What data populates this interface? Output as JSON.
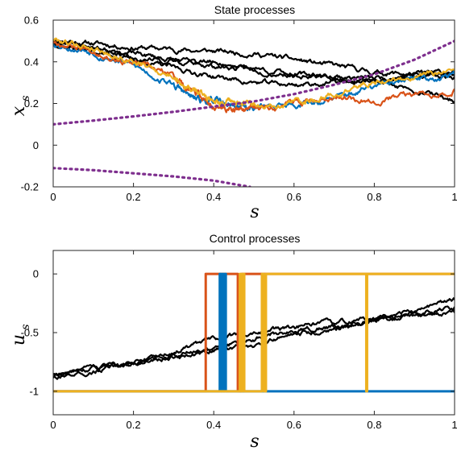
{
  "chart_data": [
    {
      "type": "line",
      "title": "State processes",
      "xlabel": "s",
      "ylabel": "x",
      "ylabel_sub": "s",
      "xlim": [
        0,
        1
      ],
      "ylim": [
        -0.2,
        0.6
      ],
      "xticks": [
        0,
        0.2,
        0.4,
        0.6,
        0.8,
        1
      ],
      "xtick_labels": [
        "0",
        "0.2",
        "0.4",
        "0.6",
        "0.8",
        "1"
      ],
      "yticks": [
        -0.2,
        0,
        0.2,
        0.4,
        0.6
      ],
      "ytick_labels": [
        "-0.2",
        "0",
        "0.2",
        "0.4",
        "0.6"
      ],
      "grid": false,
      "legend": "none",
      "series": [
        {
          "color": "#000000",
          "width": 2.2,
          "noise": 0.007,
          "seed": 11,
          "x": [
            0,
            0.1,
            0.2,
            0.3,
            0.4,
            0.5,
            0.6,
            0.7,
            0.8,
            0.9,
            1.0
          ],
          "y": [
            0.5,
            0.49,
            0.47,
            0.46,
            0.45,
            0.44,
            0.41,
            0.38,
            0.35,
            0.34,
            0.35
          ]
        },
        {
          "color": "#000000",
          "width": 2.2,
          "noise": 0.007,
          "seed": 23,
          "x": [
            0,
            0.1,
            0.2,
            0.3,
            0.4,
            0.5,
            0.6,
            0.7,
            0.8,
            0.9,
            1.0
          ],
          "y": [
            0.5,
            0.47,
            0.44,
            0.41,
            0.38,
            0.36,
            0.34,
            0.33,
            0.32,
            0.34,
            0.33
          ]
        },
        {
          "color": "#000000",
          "width": 2.2,
          "noise": 0.007,
          "seed": 37,
          "x": [
            0,
            0.1,
            0.2,
            0.3,
            0.4,
            0.5,
            0.6,
            0.7,
            0.8,
            0.9,
            1.0
          ],
          "y": [
            0.49,
            0.45,
            0.41,
            0.37,
            0.33,
            0.3,
            0.29,
            0.3,
            0.31,
            0.32,
            0.34
          ]
        },
        {
          "color": "#000000",
          "width": 2.2,
          "noise": 0.007,
          "seed": 41,
          "x": [
            0,
            0.1,
            0.2,
            0.3,
            0.4,
            0.5,
            0.6,
            0.7,
            0.8,
            0.9,
            1.0
          ],
          "y": [
            0.5,
            0.46,
            0.42,
            0.4,
            0.4,
            0.37,
            0.34,
            0.32,
            0.3,
            0.27,
            0.21
          ]
        },
        {
          "color": "#0072BD",
          "width": 2.2,
          "noise": 0.009,
          "seed": 53,
          "x": [
            0,
            0.1,
            0.2,
            0.3,
            0.35,
            0.4,
            0.45,
            0.5,
            0.6,
            0.7,
            0.8,
            0.9,
            1.0
          ],
          "y": [
            0.49,
            0.45,
            0.38,
            0.29,
            0.22,
            0.21,
            0.19,
            0.18,
            0.2,
            0.22,
            0.28,
            0.31,
            0.34
          ]
        },
        {
          "color": "#D95319",
          "width": 2.2,
          "noise": 0.009,
          "seed": 67,
          "x": [
            0,
            0.1,
            0.2,
            0.3,
            0.35,
            0.4,
            0.45,
            0.5,
            0.6,
            0.7,
            0.8,
            0.9,
            1.0
          ],
          "y": [
            0.5,
            0.46,
            0.39,
            0.33,
            0.25,
            0.19,
            0.16,
            0.18,
            0.2,
            0.24,
            0.22,
            0.24,
            0.27
          ]
        },
        {
          "color": "#EDB120",
          "width": 2.2,
          "noise": 0.009,
          "seed": 79,
          "x": [
            0,
            0.1,
            0.2,
            0.3,
            0.35,
            0.4,
            0.45,
            0.5,
            0.6,
            0.7,
            0.8,
            0.9,
            1.0
          ],
          "y": [
            0.51,
            0.47,
            0.4,
            0.33,
            0.26,
            0.22,
            0.2,
            0.19,
            0.21,
            0.24,
            0.31,
            0.32,
            0.36
          ]
        },
        {
          "color": "#7E2F8E",
          "width": 3.2,
          "dash": "2,5",
          "x": [
            0,
            0.1,
            0.2,
            0.3,
            0.4,
            0.5,
            0.6,
            0.7,
            0.8,
            0.9,
            1.0
          ],
          "y": [
            0.1,
            0.118,
            0.138,
            0.16,
            0.185,
            0.21,
            0.245,
            0.29,
            0.34,
            0.41,
            0.5
          ]
        },
        {
          "color": "#7E2F8E",
          "width": 3.2,
          "dash": "2,5",
          "x": [
            0,
            0.1,
            0.2,
            0.3,
            0.4,
            0.49
          ],
          "y": [
            -0.11,
            -0.12,
            -0.135,
            -0.15,
            -0.17,
            -0.2
          ]
        }
      ]
    },
    {
      "type": "line",
      "title": "Control processes",
      "xlabel": "s",
      "ylabel": "u",
      "ylabel_sub": "s",
      "xlim": [
        0,
        1
      ],
      "ylim": [
        -1.2,
        0.2
      ],
      "xticks": [
        0,
        0.2,
        0.4,
        0.6,
        0.8,
        1
      ],
      "xtick_labels": [
        "0",
        "0.2",
        "0.4",
        "0.6",
        "0.8",
        "1"
      ],
      "yticks": [
        -1,
        -0.5,
        0
      ],
      "ytick_labels": [
        "-1",
        "-0.5",
        "0"
      ],
      "grid": false,
      "legend": "none",
      "series": [
        {
          "color": "#000000",
          "width": 2.2,
          "noise": 0.012,
          "seed": 91,
          "x": [
            0,
            0.1,
            0.2,
            0.3,
            0.4,
            0.5,
            0.6,
            0.7,
            0.8,
            0.9,
            1.0
          ],
          "y": [
            -0.87,
            -0.8,
            -0.74,
            -0.69,
            -0.64,
            -0.55,
            -0.48,
            -0.45,
            -0.4,
            -0.32,
            -0.22
          ]
        },
        {
          "color": "#000000",
          "width": 2.2,
          "noise": 0.012,
          "seed": 103,
          "x": [
            0,
            0.1,
            0.2,
            0.3,
            0.4,
            0.5,
            0.6,
            0.7,
            0.8,
            0.9,
            1.0
          ],
          "y": [
            -0.85,
            -0.82,
            -0.77,
            -0.7,
            -0.66,
            -0.6,
            -0.52,
            -0.46,
            -0.4,
            -0.37,
            -0.33
          ]
        },
        {
          "color": "#000000",
          "width": 2.2,
          "noise": 0.012,
          "seed": 117,
          "x": [
            0,
            0.1,
            0.2,
            0.3,
            0.4,
            0.5,
            0.6,
            0.7,
            0.8,
            0.9,
            1.0
          ],
          "y": [
            -0.88,
            -0.83,
            -0.76,
            -0.66,
            -0.56,
            -0.49,
            -0.46,
            -0.42,
            -0.38,
            -0.32,
            -0.28
          ]
        },
        {
          "color": "#D95319",
          "width": 3,
          "x": [
            0,
            0.38,
            0.38,
            0.46,
            0.46,
            0.47,
            0.47,
            1.0
          ],
          "y": [
            -1,
            -1,
            0,
            0,
            -1,
            -1,
            0,
            0
          ]
        },
        {
          "color": "#0072BD",
          "width": 3,
          "x": [
            0,
            0.415,
            0.415,
            0.418,
            0.418,
            0.421,
            0.421,
            0.424,
            0.424,
            0.427,
            0.427,
            0.43,
            0.43,
            1.0
          ],
          "y": [
            -1,
            -1,
            0,
            0,
            -1,
            -1,
            0,
            0,
            -1,
            -1,
            0,
            0,
            -1,
            -1
          ]
        },
        {
          "color": "#EDB120",
          "width": 3,
          "x": [
            0,
            0.465,
            0.465,
            0.468,
            0.468,
            0.472,
            0.472,
            0.476,
            0.476,
            0.52,
            0.52,
            0.525,
            0.525,
            0.53,
            0.53,
            0.78,
            0.78,
            0.782,
            0.782,
            1.0
          ],
          "y": [
            -1,
            -1,
            0,
            0,
            -1,
            -1,
            0,
            0,
            -1,
            -1,
            0,
            0,
            -1,
            -1,
            0,
            0,
            -1,
            -1,
            0,
            0
          ]
        }
      ]
    }
  ]
}
